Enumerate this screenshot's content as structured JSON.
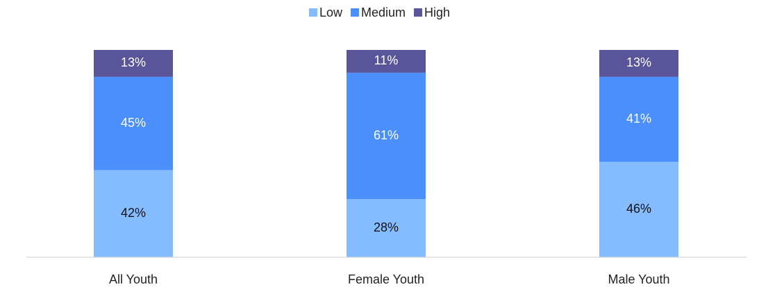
{
  "chart_data": {
    "type": "stacked_bar",
    "categories": [
      "All Youth",
      "Female Youth",
      "Male Youth"
    ],
    "series": [
      {
        "name": "Low",
        "color": "#84bcff",
        "values": [
          42,
          28,
          46
        ],
        "value_labels": [
          "42%",
          "28%",
          "46%"
        ]
      },
      {
        "name": "Medium",
        "color": "#4a8ffc",
        "values": [
          45,
          61,
          41
        ],
        "value_labels": [
          "45%",
          "61%",
          "41%"
        ]
      },
      {
        "name": "High",
        "color": "#5a5499",
        "values": [
          13,
          11,
          13
        ],
        "value_labels": [
          "13%",
          "11%",
          "13%"
        ]
      }
    ],
    "legend": "top"
  }
}
